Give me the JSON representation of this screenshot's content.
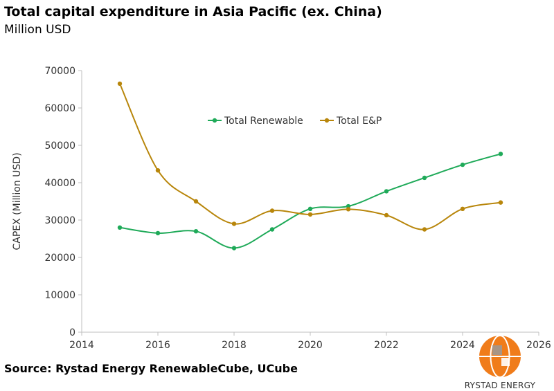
{
  "title": "Total capital expenditure in Asia Pacific (ex. China)",
  "subtitle": "Million USD",
  "source": "Source: Rystad Energy RenewableCube, UCube",
  "logo": {
    "text": "RYSTAD ENERGY",
    "color": "#f07c1a"
  },
  "chart_data": {
    "type": "line",
    "ylabel": "CAPEX (Million USD)",
    "xlabel": "",
    "xlim": [
      2014,
      2026
    ],
    "ylim": [
      0,
      70000
    ],
    "xticks": [
      "2014",
      "2016",
      "2018",
      "2020",
      "2022",
      "2024",
      "2026"
    ],
    "yticks": [
      "0",
      "10000",
      "20000",
      "30000",
      "40000",
      "50000",
      "60000",
      "70000"
    ],
    "grid": false,
    "legend_position": "top-center",
    "smooth": true,
    "series": [
      {
        "name": "Total Renewable",
        "color": "#1faa59",
        "x": [
          2015,
          2016,
          2017,
          2018,
          2019,
          2020,
          2021,
          2022,
          2023,
          2024,
          2025
        ],
        "values": [
          28000,
          26500,
          27000,
          22500,
          27500,
          33000,
          33700,
          37700,
          41300,
          44800,
          47700
        ]
      },
      {
        "name": "Total E&P",
        "color": "#b8860b",
        "x": [
          2015,
          2016,
          2017,
          2018,
          2019,
          2020,
          2021,
          2022,
          2023,
          2024,
          2025
        ],
        "values": [
          66500,
          43300,
          35000,
          29000,
          32500,
          31500,
          32900,
          31300,
          27500,
          33000,
          34700
        ]
      }
    ]
  }
}
